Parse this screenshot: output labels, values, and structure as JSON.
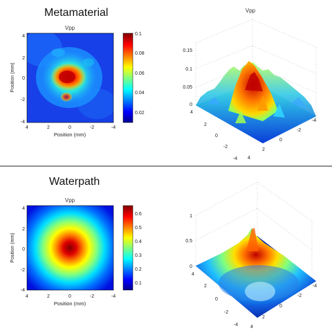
{
  "colors": {
    "hot_stops": [
      "#00008f",
      "#0000ff",
      "#0080ff",
      "#00ffff",
      "#80ff80",
      "#ffff00",
      "#ff8000",
      "#ff0000",
      "#800000"
    ]
  },
  "chart_data": [
    {
      "id": "metamaterial",
      "title": "Metamaterial",
      "heatmap": {
        "type": "heatmap",
        "title": "Vpp",
        "xlabel": "Position (mm)",
        "ylabel": "Position (mm)",
        "xlim": [
          4,
          -4
        ],
        "ylim": [
          -4,
          4
        ],
        "xticks": [
          "4",
          "2",
          "0",
          "-2",
          "-4"
        ],
        "yticks": [
          "4",
          "2",
          "0",
          "-2",
          "-4"
        ],
        "colorbar": {
          "range": [
            0.01,
            0.1
          ],
          "ticks": [
            "0.1",
            "0.08",
            "0.06",
            "0.04",
            "0.02"
          ]
        }
      },
      "surface": {
        "type": "surface",
        "title": "Vpp",
        "zticks": [
          "0.15",
          "0.1",
          "0.05",
          "0"
        ],
        "xticks": [
          "-4",
          "-2",
          "0",
          "2",
          "4"
        ],
        "yticks": [
          "4",
          "2",
          "0",
          "-2",
          "-4"
        ]
      }
    },
    {
      "id": "waterpath",
      "title": "Waterpath",
      "heatmap": {
        "type": "heatmap",
        "title": "Vpp",
        "xlabel": "Position (mm)",
        "ylabel": "Position (mm)",
        "xlim": [
          4,
          -4
        ],
        "ylim": [
          -4,
          4
        ],
        "xticks": [
          "4",
          "2",
          "0",
          "-2",
          "-4"
        ],
        "yticks": [
          "4",
          "2",
          "0",
          "-2",
          "-4"
        ],
        "colorbar": {
          "range": [
            0.02,
            0.62
          ],
          "ticks": [
            "0.6",
            "0.5",
            "0.4",
            "0.3",
            "0.2",
            "0.1"
          ]
        }
      },
      "surface": {
        "type": "surface",
        "title": "Vpp",
        "zticks": [
          "1",
          "0.5",
          "0"
        ],
        "xticks": [
          "-4",
          "-2",
          "0",
          "2",
          "4"
        ],
        "yticks": [
          "4",
          "2",
          "0",
          "-2",
          "-4"
        ]
      }
    }
  ]
}
